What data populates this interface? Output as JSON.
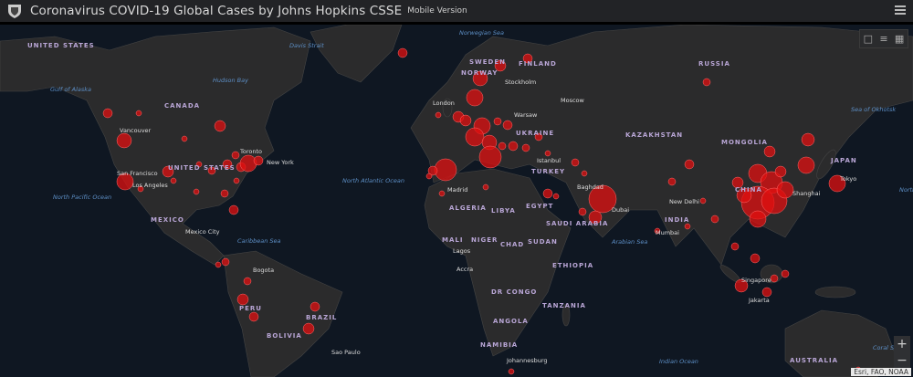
{
  "header": {
    "title": "Coronavirus COVID-19 Global Cases by Johns Hopkins CSSE",
    "subtitle": "Mobile Version",
    "logo": "jhu-shield-logo",
    "menu_icon": "hamburger-icon"
  },
  "widgets": [
    {
      "icon": "bookmark-icon"
    },
    {
      "icon": "legend-list-icon"
    },
    {
      "icon": "basemap-gallery-icon"
    }
  ],
  "zoom": {
    "in": "+",
    "out": "−"
  },
  "attribution": "Esri, FAO, NOAA",
  "colors": {
    "ocean": "#0f1722",
    "land": "#2b2b2c",
    "case_circle": "#e01010",
    "header": "#222326"
  },
  "labels": {
    "countries": [
      "UNITED STATES",
      "CANADA",
      "UNITED STATES",
      "MEXICO",
      "BRAZIL",
      "PERU",
      "BOLIVIA",
      "RUSSIA",
      "KAZAKHSTAN",
      "MONGOLIA",
      "CHINA",
      "INDIA",
      "ALGERIA",
      "LIBYA",
      "EGYPT",
      "MALI",
      "NIGER",
      "CHAD",
      "SUDAN",
      "ETHIOPIA",
      "DR CONGO",
      "TANZANIA",
      "ANGOLA",
      "NAMIBIA",
      "SAUDI ARABIA",
      "TURKEY",
      "UKRAINE",
      "FINLAND",
      "SWEDEN",
      "NORWAY",
      "AUSTRALIA",
      "JAPAN"
    ],
    "cities": [
      "Vancouver",
      "San Francisco",
      "Los Angeles",
      "Toronto",
      "New York",
      "Mexico City",
      "Bogota",
      "Sao Paulo",
      "Moscow",
      "Stockholm",
      "Warsaw",
      "Istanbul",
      "Madrid",
      "London",
      "Baghdad",
      "Dubai",
      "New Delhi",
      "Mumbai",
      "Shanghai",
      "Tokyo",
      "Singapore",
      "Jakarta",
      "Accra",
      "Johannesburg",
      "Lagos"
    ],
    "oceans": [
      "Gulf of Alaska",
      "Hudson Bay",
      "Davis Strait",
      "Norwegian Sea",
      "North Atlantic Ocean",
      "North Pacific Ocean",
      "Caribbean Sea",
      "Arabian Sea",
      "Sea of Okhotsk",
      "Indian Ocean",
      "Coral Sea",
      "North Pacific Ocean"
    ]
  }
}
